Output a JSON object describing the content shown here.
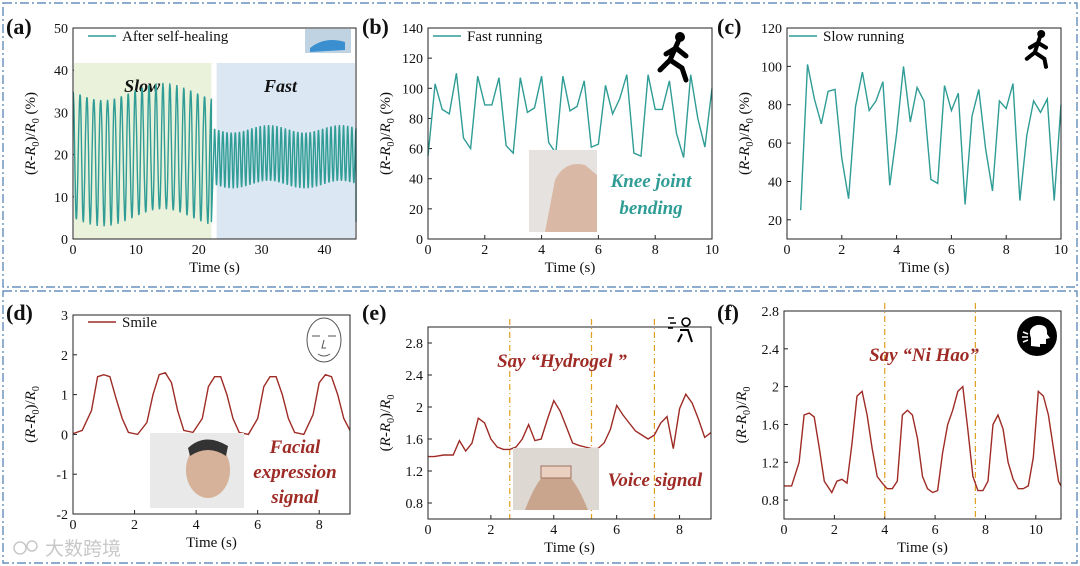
{
  "colors": {
    "teal": "#2f9c95",
    "red": "#9e2b25",
    "frame": "#4a7ab0",
    "guide": "#e0a020",
    "slow_bg": "#eaf2dc",
    "fast_bg": "#dbe7f2"
  },
  "watermark": "大数跨境",
  "chart_data": [
    {
      "id": "a",
      "type": "line",
      "panel_label": "(a)",
      "legend": "After self-healing",
      "legend_icon": "finger-bending-photo",
      "xlabel": "Time (s)",
      "ylabel": "(R-R0)/R0 (%)",
      "xlim": [
        0,
        45
      ],
      "ylim": [
        0,
        50
      ],
      "xticks": [
        0,
        10,
        20,
        30,
        40
      ],
      "yticks": [
        0,
        10,
        20,
        30,
        40,
        50
      ],
      "color": "teal",
      "regions": [
        {
          "label": "Slow",
          "x": [
            0,
            22
          ]
        },
        {
          "label": "Fast",
          "x": [
            23,
            45
          ]
        }
      ],
      "segments": [
        {
          "x_start": 0,
          "x_end": 22,
          "cycles": 20,
          "low": 3,
          "high": 37
        },
        {
          "x_start": 22.5,
          "x_end": 45,
          "cycles": 34,
          "low": 12,
          "high": 27
        }
      ]
    },
    {
      "id": "b",
      "type": "line",
      "panel_label": "(b)",
      "legend": "Fast running",
      "legend_icon": "runner-icon",
      "xlabel": "Time (s)",
      "ylabel": "(R-R0)/R0 (%)",
      "xlim": [
        0,
        10
      ],
      "ylim": [
        0,
        140
      ],
      "xticks": [
        0,
        2,
        4,
        6,
        8,
        10
      ],
      "yticks": [
        0,
        20,
        40,
        60,
        80,
        100,
        120,
        140
      ],
      "color": "teal",
      "annotation": "Knee joint bending",
      "x": [
        0,
        0.25,
        0.5,
        0.75,
        1,
        1.25,
        1.5,
        1.75,
        2,
        2.25,
        2.5,
        2.75,
        3,
        3.25,
        3.5,
        3.75,
        4,
        4.25,
        4.5,
        4.75,
        5,
        5.25,
        5.5,
        5.75,
        6,
        6.25,
        6.5,
        6.75,
        7,
        7.25,
        7.5,
        7.75,
        8,
        8.25,
        8.5,
        8.75,
        9,
        9.25,
        9.5,
        9.75,
        10
      ],
      "y": [
        55,
        103,
        86,
        83,
        110,
        67,
        60,
        108,
        89,
        89,
        107,
        62,
        57,
        107,
        84,
        87,
        108,
        64,
        57,
        108,
        85,
        88,
        105,
        61,
        63,
        102,
        83,
        93,
        109,
        57,
        55,
        109,
        86,
        86,
        105,
        70,
        54,
        109,
        80,
        61,
        100
      ]
    },
    {
      "id": "c",
      "type": "line",
      "panel_label": "(c)",
      "legend": "Slow running",
      "legend_icon": "runner-icon",
      "xlabel": "Time (s)",
      "ylabel": "(R-R0)/R0 (%)",
      "xlim": [
        0,
        10
      ],
      "ylim": [
        10,
        120
      ],
      "xticks": [
        0,
        2,
        4,
        6,
        8,
        10
      ],
      "yticks": [
        20,
        40,
        60,
        80,
        100,
        120
      ],
      "color": "teal",
      "x": [
        0.5,
        0.75,
        1,
        1.25,
        1.5,
        1.75,
        2,
        2.25,
        2.5,
        2.75,
        3,
        3.25,
        3.5,
        3.75,
        4,
        4.25,
        4.5,
        4.75,
        5,
        5.25,
        5.5,
        5.75,
        6,
        6.25,
        6.5,
        6.75,
        7,
        7.25,
        7.5,
        7.75,
        8,
        8.25,
        8.5,
        8.75,
        9,
        9.25,
        9.5,
        9.75,
        10
      ],
      "y": [
        25,
        101,
        83,
        70,
        87,
        88,
        52,
        31,
        79,
        97,
        77,
        82,
        92,
        38,
        65,
        100,
        71,
        89,
        82,
        41,
        39,
        90,
        77,
        86,
        28,
        74,
        88,
        57,
        35,
        82,
        78,
        91,
        30,
        64,
        82,
        76,
        83,
        30,
        80
      ]
    },
    {
      "id": "d",
      "type": "line",
      "panel_label": "(d)",
      "legend": "Smile",
      "legend_icon": "face-icon",
      "xlabel": "Time (s)",
      "ylabel": "(R-R0)/R0",
      "xlim": [
        0,
        9
      ],
      "ylim": [
        -2,
        3
      ],
      "xticks": [
        0,
        2,
        4,
        6,
        8
      ],
      "yticks": [
        -2,
        -1,
        0,
        1,
        2,
        3
      ],
      "color": "red",
      "annotation": "Facial expression signal",
      "x": [
        0,
        0.3,
        0.6,
        0.8,
        1.0,
        1.2,
        1.4,
        1.6,
        1.8,
        2.1,
        2.4,
        2.6,
        2.8,
        3.0,
        3.2,
        3.4,
        3.6,
        3.9,
        4.2,
        4.4,
        4.6,
        4.8,
        5.0,
        5.2,
        5.4,
        5.7,
        6.0,
        6.2,
        6.4,
        6.6,
        6.8,
        7.0,
        7.2,
        7.5,
        7.8,
        8.0,
        8.2,
        8.4,
        8.6,
        8.8,
        9.0
      ],
      "y": [
        0.02,
        0.1,
        0.6,
        1.45,
        1.5,
        1.45,
        0.9,
        0.4,
        0.05,
        0.0,
        0.3,
        1.0,
        1.5,
        1.55,
        1.3,
        0.6,
        0.1,
        0.05,
        0.4,
        1.2,
        1.45,
        1.45,
        1.0,
        0.4,
        0.05,
        0.0,
        0.4,
        1.2,
        1.45,
        1.45,
        1.0,
        0.4,
        0.05,
        0.0,
        0.5,
        1.3,
        1.5,
        1.45,
        1.0,
        0.4,
        0.1
      ]
    },
    {
      "id": "e",
      "type": "line",
      "panel_label": "(e)",
      "legend": "",
      "legend_icon": "speaking-person-icon",
      "xlabel": "Time (s)",
      "ylabel": "(R-R0)/R0",
      "xlim": [
        0,
        9
      ],
      "ylim": [
        0.6,
        3.0
      ],
      "xticks": [
        0,
        2,
        4,
        6,
        8
      ],
      "yticks": [
        0.8,
        1.2,
        1.6,
        2.0,
        2.4,
        2.8
      ],
      "color": "red",
      "annotation": "Say “Hydrogel ”",
      "annotation2": "Voice signal",
      "guides": [
        2.6,
        5.2,
        7.2
      ],
      "x": [
        0,
        0.2,
        0.5,
        0.8,
        1.0,
        1.2,
        1.4,
        1.6,
        1.8,
        2.0,
        2.2,
        2.4,
        2.6,
        2.8,
        3.0,
        3.2,
        3.4,
        3.6,
        3.8,
        4.0,
        4.2,
        4.4,
        4.6,
        4.8,
        5.0,
        5.2,
        5.4,
        5.6,
        5.8,
        6.0,
        6.2,
        6.4,
        6.6,
        6.8,
        7.0,
        7.2,
        7.4,
        7.6,
        7.8,
        8.0,
        8.2,
        8.4,
        8.6,
        8.8,
        9.0
      ],
      "y": [
        1.38,
        1.38,
        1.4,
        1.4,
        1.58,
        1.45,
        1.55,
        1.86,
        1.8,
        1.6,
        1.5,
        1.47,
        1.47,
        1.5,
        1.6,
        1.78,
        1.58,
        1.6,
        1.85,
        2.08,
        1.95,
        1.75,
        1.55,
        1.52,
        1.5,
        1.48,
        1.48,
        1.55,
        1.72,
        2.02,
        1.9,
        1.8,
        1.7,
        1.65,
        1.6,
        1.65,
        1.8,
        1.88,
        1.48,
        1.98,
        2.16,
        2.05,
        1.85,
        1.62,
        1.68
      ]
    },
    {
      "id": "f",
      "type": "line",
      "panel_label": "(f)",
      "legend": "",
      "legend_icon": "speaking-head-icon",
      "xlabel": "Time (s)",
      "ylabel": "(R-R0)/R0",
      "xlim": [
        0,
        11
      ],
      "ylim": [
        0.6,
        2.8
      ],
      "xticks": [
        0,
        2,
        4,
        6,
        8,
        10
      ],
      "yticks": [
        0.8,
        1.2,
        1.6,
        2.0,
        2.4,
        2.8
      ],
      "color": "red",
      "annotation": "Say “Ni Hao”",
      "guides": [
        4.0,
        7.6
      ],
      "x": [
        0,
        0.3,
        0.6,
        0.8,
        1.0,
        1.2,
        1.4,
        1.6,
        1.9,
        2.1,
        2.3,
        2.5,
        2.7,
        2.9,
        3.1,
        3.3,
        3.5,
        3.7,
        3.9,
        4.1,
        4.3,
        4.5,
        4.7,
        4.9,
        5.1,
        5.3,
        5.5,
        5.7,
        5.9,
        6.1,
        6.3,
        6.5,
        6.7,
        6.9,
        7.1,
        7.3,
        7.5,
        7.7,
        7.9,
        8.1,
        8.3,
        8.5,
        8.7,
        8.9,
        9.1,
        9.3,
        9.5,
        9.7,
        9.9,
        10.1,
        10.3,
        10.5,
        10.7,
        10.9,
        11.0
      ],
      "y": [
        0.95,
        0.95,
        1.2,
        1.7,
        1.72,
        1.68,
        1.35,
        1.0,
        0.88,
        1.0,
        1.02,
        0.98,
        1.4,
        1.9,
        1.95,
        1.7,
        1.35,
        1.05,
        0.98,
        0.92,
        0.92,
        1.0,
        1.7,
        1.75,
        1.7,
        1.45,
        1.05,
        0.92,
        0.88,
        0.9,
        1.3,
        1.6,
        1.75,
        1.95,
        2.0,
        1.55,
        1.05,
        0.9,
        0.9,
        1.0,
        1.6,
        1.7,
        1.55,
        1.2,
        1.02,
        0.92,
        0.92,
        0.95,
        1.25,
        1.95,
        1.9,
        1.7,
        1.35,
        1.0,
        0.95
      ]
    }
  ]
}
